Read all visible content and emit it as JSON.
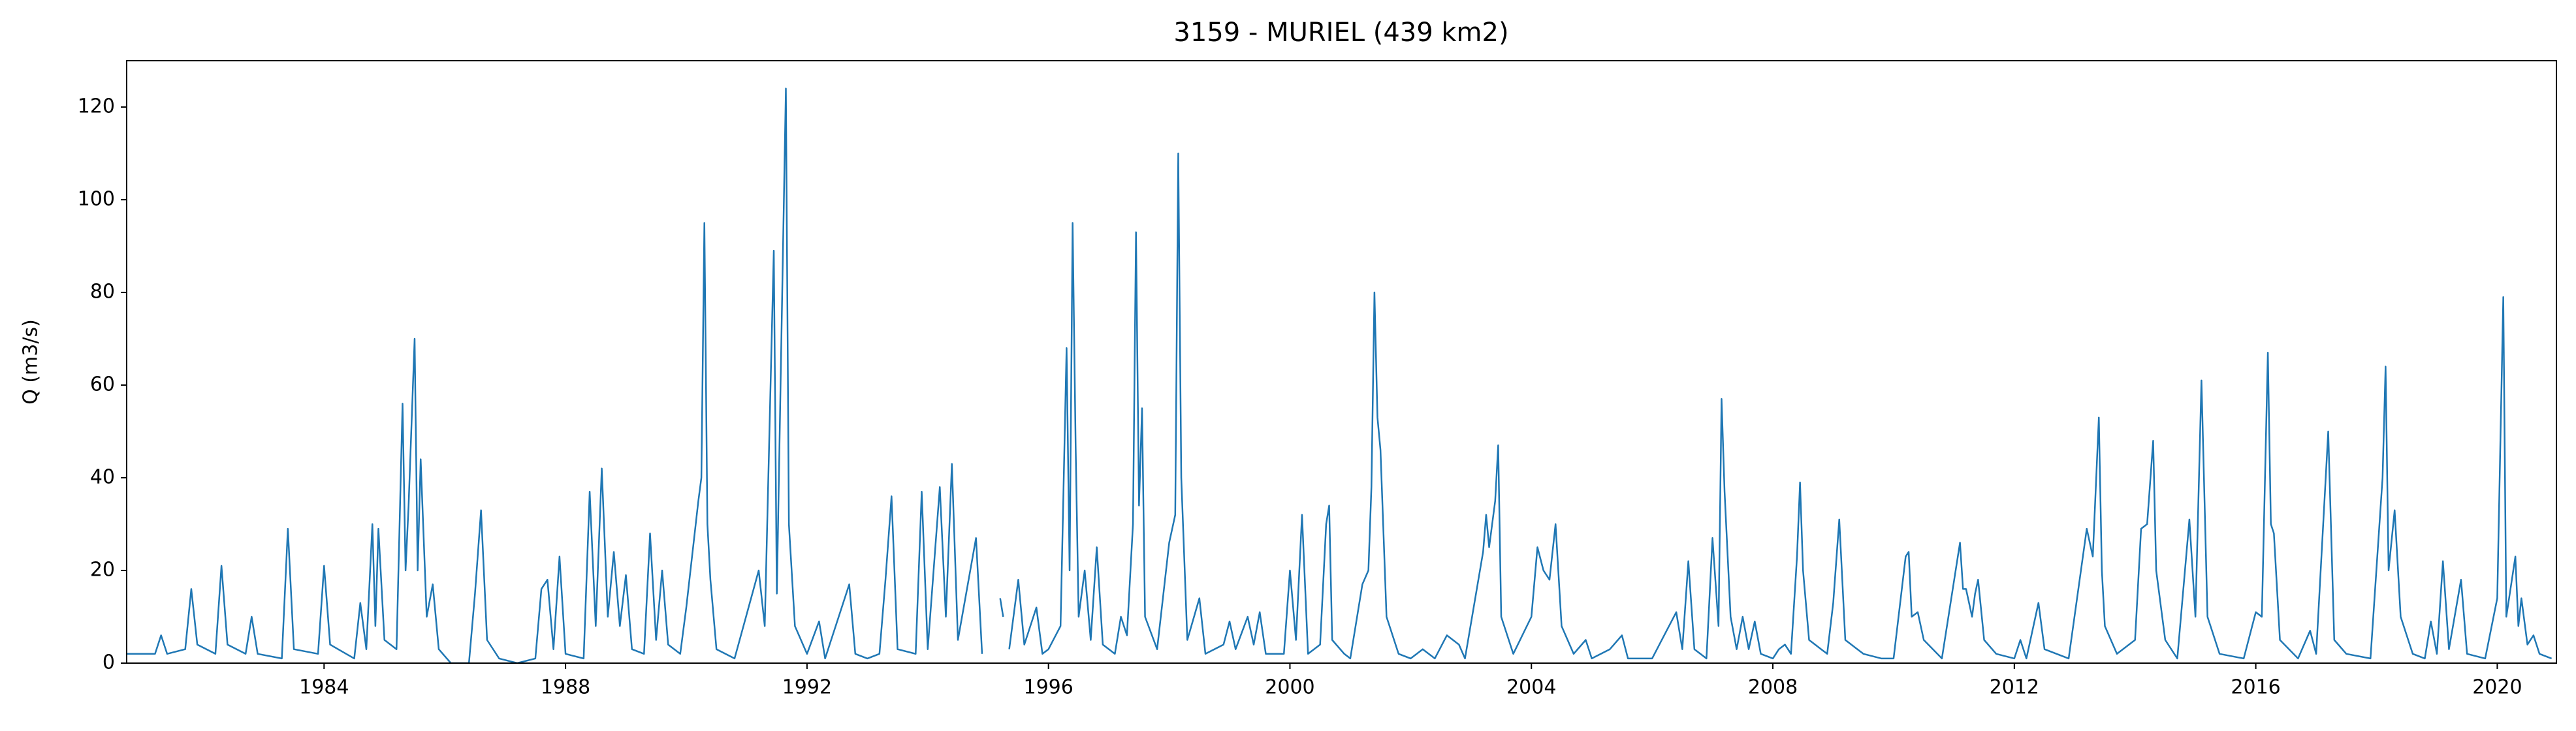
{
  "chart_data": {
    "type": "line",
    "title": "3159 - MURIEL (439 km2)",
    "y_label": "Q (m3/s)",
    "xlim": [
      1980.73,
      2020.98
    ],
    "ylim": [
      0,
      130
    ],
    "xticks": [
      1984,
      1988,
      1992,
      1996,
      2000,
      2004,
      2008,
      2012,
      2016,
      2020
    ],
    "yticks": [
      0,
      20,
      40,
      60,
      80,
      100,
      120
    ],
    "grid": false,
    "x": [
      1980.73,
      1981.2,
      1981.3,
      1981.4,
      1981.7,
      1981.8,
      1981.9,
      1982.2,
      1982.3,
      1982.4,
      1982.7,
      1982.8,
      1982.9,
      1983.3,
      1983.4,
      1983.5,
      1983.9,
      1984.0,
      1984.1,
      1984.5,
      1984.6,
      1984.7,
      1984.8,
      1984.85,
      1984.9,
      1985.0,
      1985.2,
      1985.3,
      1985.35,
      1985.4,
      1985.5,
      1985.55,
      1985.6,
      1985.7,
      1985.8,
      1985.9,
      1986.1,
      1986.4,
      1986.5,
      1986.6,
      1986.7,
      1986.9,
      1987.2,
      1987.5,
      1987.6,
      1987.7,
      1987.8,
      1987.9,
      1988.0,
      1988.3,
      1988.4,
      1988.5,
      1988.6,
      1988.7,
      1988.8,
      1988.9,
      1989.0,
      1989.1,
      1989.3,
      1989.4,
      1989.5,
      1989.6,
      1989.7,
      1989.9,
      1990.0,
      1990.2,
      1990.25,
      1990.3,
      1990.35,
      1990.4,
      1990.5,
      1990.8,
      1991.2,
      1991.3,
      1991.45,
      1991.5,
      1991.65,
      1991.7,
      1991.8,
      1992.0,
      1992.2,
      1992.3,
      1992.7,
      1992.8,
      1993.0,
      1993.2,
      1993.3,
      1993.4,
      1993.5,
      1993.8,
      1993.9,
      1994.0,
      1994.2,
      1994.3,
      1994.4,
      1994.5,
      1994.8,
      1994.9,
      1995.15,
      1995.2,
      1995.25,
      1995.3,
      1995.35,
      1995.5,
      1995.6,
      1995.8,
      1995.9,
      1996.0,
      1996.2,
      1996.3,
      1996.35,
      1996.4,
      1996.45,
      1996.5,
      1996.6,
      1996.7,
      1996.8,
      1996.9,
      1997.1,
      1997.2,
      1997.3,
      1997.4,
      1997.45,
      1997.5,
      1997.55,
      1997.6,
      1997.8,
      1998.0,
      1998.1,
      1998.15,
      1998.2,
      1998.3,
      1998.5,
      1998.6,
      1998.9,
      1999.0,
      1999.1,
      1999.3,
      1999.4,
      1999.5,
      1999.6,
      1999.9,
      2000.0,
      2000.1,
      2000.2,
      2000.3,
      2000.5,
      2000.6,
      2000.65,
      2000.7,
      2000.9,
      2001.0,
      2001.2,
      2001.3,
      2001.35,
      2001.4,
      2001.45,
      2001.5,
      2001.6,
      2001.8,
      2002.0,
      2002.2,
      2002.4,
      2002.6,
      2002.8,
      2002.9,
      2003.2,
      2003.25,
      2003.3,
      2003.4,
      2003.45,
      2003.5,
      2003.7,
      2004.0,
      2004.1,
      2004.2,
      2004.3,
      2004.4,
      2004.5,
      2004.7,
      2004.9,
      2005.0,
      2005.3,
      2005.5,
      2005.6,
      2006.0,
      2006.4,
      2006.5,
      2006.6,
      2006.7,
      2006.9,
      2007.0,
      2007.1,
      2007.15,
      2007.2,
      2007.3,
      2007.4,
      2007.5,
      2007.6,
      2007.7,
      2007.8,
      2008.0,
      2008.1,
      2008.2,
      2008.3,
      2008.4,
      2008.45,
      2008.5,
      2008.6,
      2008.8,
      2008.9,
      2009.0,
      2009.1,
      2009.2,
      2009.4,
      2009.5,
      2009.8,
      2010.0,
      2010.2,
      2010.25,
      2010.3,
      2010.4,
      2010.5,
      2010.8,
      2011.1,
      2011.15,
      2011.2,
      2011.3,
      2011.35,
      2011.4,
      2011.5,
      2011.7,
      2012.0,
      2012.1,
      2012.2,
      2012.4,
      2012.5,
      2012.9,
      2013.2,
      2013.3,
      2013.4,
      2013.45,
      2013.5,
      2013.7,
      2014.0,
      2014.1,
      2014.2,
      2014.3,
      2014.35,
      2014.5,
      2014.7,
      2014.9,
      2015.0,
      2015.1,
      2015.2,
      2015.4,
      2015.8,
      2016.0,
      2016.1,
      2016.2,
      2016.25,
      2016.3,
      2016.4,
      2016.7,
      2016.9,
      2017.0,
      2017.2,
      2017.3,
      2017.5,
      2017.9,
      2018.1,
      2018.15,
      2018.2,
      2018.3,
      2018.4,
      2018.6,
      2018.8,
      2018.9,
      2019.0,
      2019.1,
      2019.2,
      2019.4,
      2019.5,
      2019.8,
      2020.0,
      2020.1,
      2020.15,
      2020.3,
      2020.35,
      2020.4,
      2020.5,
      2020.6,
      2020.7,
      2020.9
    ],
    "series": [
      {
        "color": "#1f77b4",
        "values": [
          2,
          2,
          6,
          2,
          3,
          16,
          4,
          2,
          21,
          4,
          2,
          10,
          2,
          1,
          29,
          3,
          2,
          21,
          4,
          1,
          13,
          3,
          30,
          8,
          29,
          5,
          3,
          56,
          20,
          34,
          70,
          20,
          44,
          10,
          17,
          3,
          0,
          0,
          15,
          33,
          5,
          1,
          0,
          1,
          16,
          18,
          3,
          23,
          2,
          1,
          37,
          8,
          42,
          10,
          24,
          8,
          19,
          3,
          2,
          28,
          5,
          20,
          4,
          2,
          12,
          35,
          40,
          95,
          30,
          18,
          3,
          1,
          20,
          8,
          89,
          15,
          124,
          30,
          8,
          2,
          9,
          1,
          17,
          2,
          1,
          2,
          18,
          36,
          3,
          2,
          37,
          3,
          38,
          10,
          43,
          5,
          27,
          2,
          null,
          14,
          10,
          null,
          3,
          18,
          4,
          12,
          2,
          3,
          8,
          68,
          20,
          95,
          47,
          10,
          20,
          5,
          25,
          4,
          2,
          10,
          6,
          30,
          93,
          34,
          55,
          10,
          3,
          26,
          32,
          110,
          40,
          5,
          14,
          2,
          4,
          9,
          3,
          10,
          4,
          11,
          2,
          2,
          20,
          5,
          32,
          2,
          4,
          30,
          34,
          5,
          2,
          1,
          17,
          20,
          38,
          80,
          53,
          46,
          10,
          2,
          1,
          3,
          1,
          6,
          4,
          1,
          24,
          32,
          25,
          35,
          47,
          10,
          2,
          10,
          25,
          20,
          18,
          30,
          8,
          2,
          5,
          1,
          3,
          6,
          1,
          1,
          11,
          3,
          22,
          3,
          1,
          27,
          8,
          57,
          37,
          10,
          3,
          10,
          3,
          9,
          2,
          1,
          3,
          4,
          2,
          23,
          39,
          20,
          5,
          3,
          2,
          13,
          31,
          5,
          3,
          2,
          1,
          1,
          23,
          24,
          10,
          11,
          5,
          1,
          26,
          16,
          16,
          10,
          15,
          18,
          5,
          2,
          1,
          5,
          1,
          13,
          3,
          1,
          29,
          23,
          53,
          20,
          8,
          2,
          5,
          29,
          30,
          48,
          20,
          5,
          1,
          31,
          10,
          61,
          10,
          2,
          1,
          11,
          10,
          67,
          30,
          28,
          5,
          1,
          7,
          2,
          50,
          5,
          2,
          1,
          40,
          64,
          20,
          33,
          10,
          2,
          1,
          9,
          2,
          22,
          3,
          18,
          2,
          1,
          14,
          79,
          10,
          23,
          8,
          14,
          4,
          6,
          2,
          1
        ]
      }
    ]
  }
}
